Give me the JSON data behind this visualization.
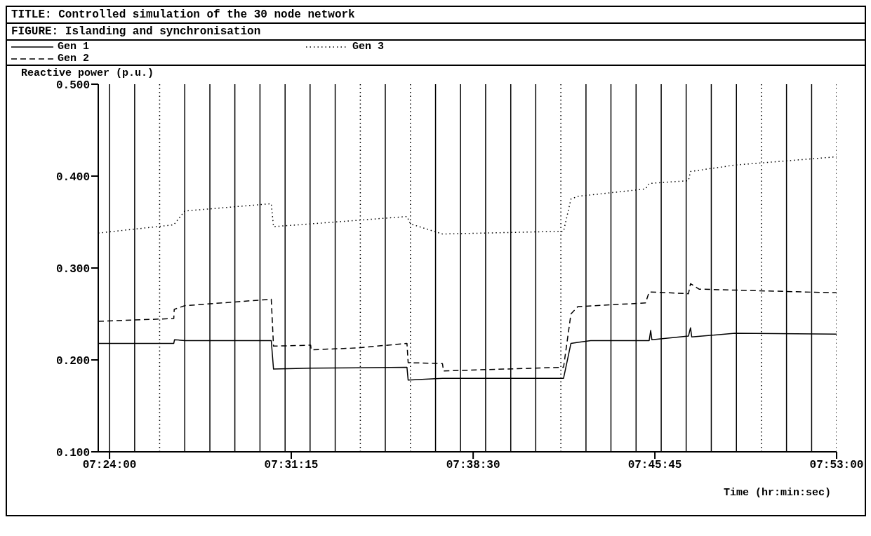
{
  "chart_data": {
    "type": "line",
    "title": "TITLE: Controlled simulation of the 30 node network",
    "subtitle": "FIGURE: Islanding and synchronisation",
    "xlabel": "Time (hr:min:sec)",
    "ylabel": "Reactive power (p.u.)",
    "legend": "top left",
    "grid": false,
    "marker": "none",
    "xlim": [
      7.3925,
      7.8833
    ],
    "xticks": [
      {
        "value": 7.4,
        "label": "07:24:00"
      },
      {
        "value": 7.5208,
        "label": "07:31:15"
      },
      {
        "value": 7.6417,
        "label": "07:38:30"
      },
      {
        "value": 7.7625,
        "label": "07:45:45"
      },
      {
        "value": 7.8833,
        "label": "07:53:00"
      }
    ],
    "ylim": [
      0.1,
      0.5
    ],
    "yticks": [
      {
        "value": 0.1,
        "label": "0.100"
      },
      {
        "value": 0.2,
        "label": "0.200"
      },
      {
        "value": 0.3,
        "label": "0.300"
      },
      {
        "value": 0.4,
        "label": "0.400"
      },
      {
        "value": 0.5,
        "label": "0.500"
      }
    ],
    "series": [
      {
        "name": "Gen 1",
        "color": "#000000",
        "line_style": "solid",
        "x": [
          7.3925,
          7.4427,
          7.4432,
          7.45,
          7.5075,
          7.509,
          7.5337,
          7.5977,
          7.5985,
          7.6213,
          7.7018,
          7.7067,
          7.7113,
          7.7198,
          7.7587,
          7.7597,
          7.7605,
          7.7848,
          7.7862,
          7.787,
          7.8157,
          7.8833
        ],
        "values": [
          0.218,
          0.218,
          0.222,
          0.221,
          0.221,
          0.19,
          0.191,
          0.192,
          0.178,
          0.18,
          0.18,
          0.218,
          0.219,
          0.221,
          0.221,
          0.232,
          0.222,
          0.226,
          0.235,
          0.225,
          0.229,
          0.228
        ]
      },
      {
        "name": "Gen 2",
        "color": "#000000",
        "line_style": "dashed",
        "x": [
          7.3925,
          7.4427,
          7.443,
          7.45,
          7.5075,
          7.509,
          7.5337,
          7.534,
          7.5645,
          7.5977,
          7.5985,
          7.6213,
          7.622,
          7.7018,
          7.7067,
          7.7113,
          7.7563,
          7.7587,
          7.7848,
          7.7862,
          7.7919,
          7.8833
        ],
        "values": [
          0.242,
          0.245,
          0.255,
          0.259,
          0.266,
          0.215,
          0.216,
          0.211,
          0.213,
          0.218,
          0.197,
          0.196,
          0.188,
          0.192,
          0.25,
          0.258,
          0.262,
          0.274,
          0.272,
          0.283,
          0.277,
          0.273
        ]
      },
      {
        "name": "Gen 3",
        "color": "#000000",
        "line_style": "dotted",
        "x": [
          7.3925,
          7.4427,
          7.45,
          7.5075,
          7.509,
          7.5337,
          7.5977,
          7.6,
          7.6213,
          7.7018,
          7.7067,
          7.7113,
          7.7563,
          7.7587,
          7.7848,
          7.7862,
          7.8157,
          7.8833
        ],
        "values": [
          0.338,
          0.347,
          0.362,
          0.37,
          0.345,
          0.348,
          0.356,
          0.348,
          0.337,
          0.34,
          0.375,
          0.378,
          0.386,
          0.392,
          0.395,
          0.405,
          0.412,
          0.421
        ]
      }
    ],
    "ref_lines": [
      {
        "axis": "x",
        "value": 7.4,
        "line_style": "solid",
        "color": "#000000"
      },
      {
        "axis": "x",
        "value": 7.4167,
        "line_style": "solid",
        "color": "#000000"
      },
      {
        "axis": "x",
        "value": 7.4333,
        "line_style": "dotted",
        "color": "#000000"
      },
      {
        "axis": "x",
        "value": 7.45,
        "line_style": "solid",
        "color": "#000000"
      },
      {
        "axis": "x",
        "value": 7.4667,
        "line_style": "solid",
        "color": "#000000"
      },
      {
        "axis": "x",
        "value": 7.4833,
        "line_style": "solid",
        "color": "#000000"
      },
      {
        "axis": "x",
        "value": 7.5,
        "line_style": "solid",
        "color": "#000000"
      },
      {
        "axis": "x",
        "value": 7.5167,
        "line_style": "solid",
        "color": "#000000"
      },
      {
        "axis": "x",
        "value": 7.5333,
        "line_style": "solid",
        "color": "#000000"
      },
      {
        "axis": "x",
        "value": 7.55,
        "line_style": "solid",
        "color": "#000000"
      },
      {
        "axis": "x",
        "value": 7.5667,
        "line_style": "dotted",
        "color": "#000000"
      },
      {
        "axis": "x",
        "value": 7.5833,
        "line_style": "solid",
        "color": "#000000"
      },
      {
        "axis": "x",
        "value": 7.6,
        "line_style": "dotted",
        "color": "#000000"
      },
      {
        "axis": "x",
        "value": 7.6167,
        "line_style": "solid",
        "color": "#000000"
      },
      {
        "axis": "x",
        "value": 7.6333,
        "line_style": "solid",
        "color": "#000000"
      },
      {
        "axis": "x",
        "value": 7.65,
        "line_style": "solid",
        "color": "#000000"
      },
      {
        "axis": "x",
        "value": 7.6667,
        "line_style": "solid",
        "color": "#000000"
      },
      {
        "axis": "x",
        "value": 7.6833,
        "line_style": "solid",
        "color": "#000000"
      },
      {
        "axis": "x",
        "value": 7.7,
        "line_style": "dotted",
        "color": "#000000"
      },
      {
        "axis": "x",
        "value": 7.7167,
        "line_style": "solid",
        "color": "#000000"
      },
      {
        "axis": "x",
        "value": 7.7333,
        "line_style": "solid",
        "color": "#000000"
      },
      {
        "axis": "x",
        "value": 7.75,
        "line_style": "solid",
        "color": "#000000"
      },
      {
        "axis": "x",
        "value": 7.7667,
        "line_style": "solid",
        "color": "#000000"
      },
      {
        "axis": "x",
        "value": 7.7833,
        "line_style": "solid",
        "color": "#000000"
      },
      {
        "axis": "x",
        "value": 7.8,
        "line_style": "solid",
        "color": "#000000"
      },
      {
        "axis": "x",
        "value": 7.8167,
        "line_style": "solid",
        "color": "#000000"
      },
      {
        "axis": "x",
        "value": 7.8333,
        "line_style": "dotted",
        "color": "#000000"
      },
      {
        "axis": "x",
        "value": 7.85,
        "line_style": "solid",
        "color": "#000000"
      },
      {
        "axis": "x",
        "value": 7.8667,
        "line_style": "solid",
        "color": "#000000"
      },
      {
        "axis": "x",
        "value": 7.8833,
        "line_style": "dotted",
        "color": "#000000"
      }
    ]
  }
}
